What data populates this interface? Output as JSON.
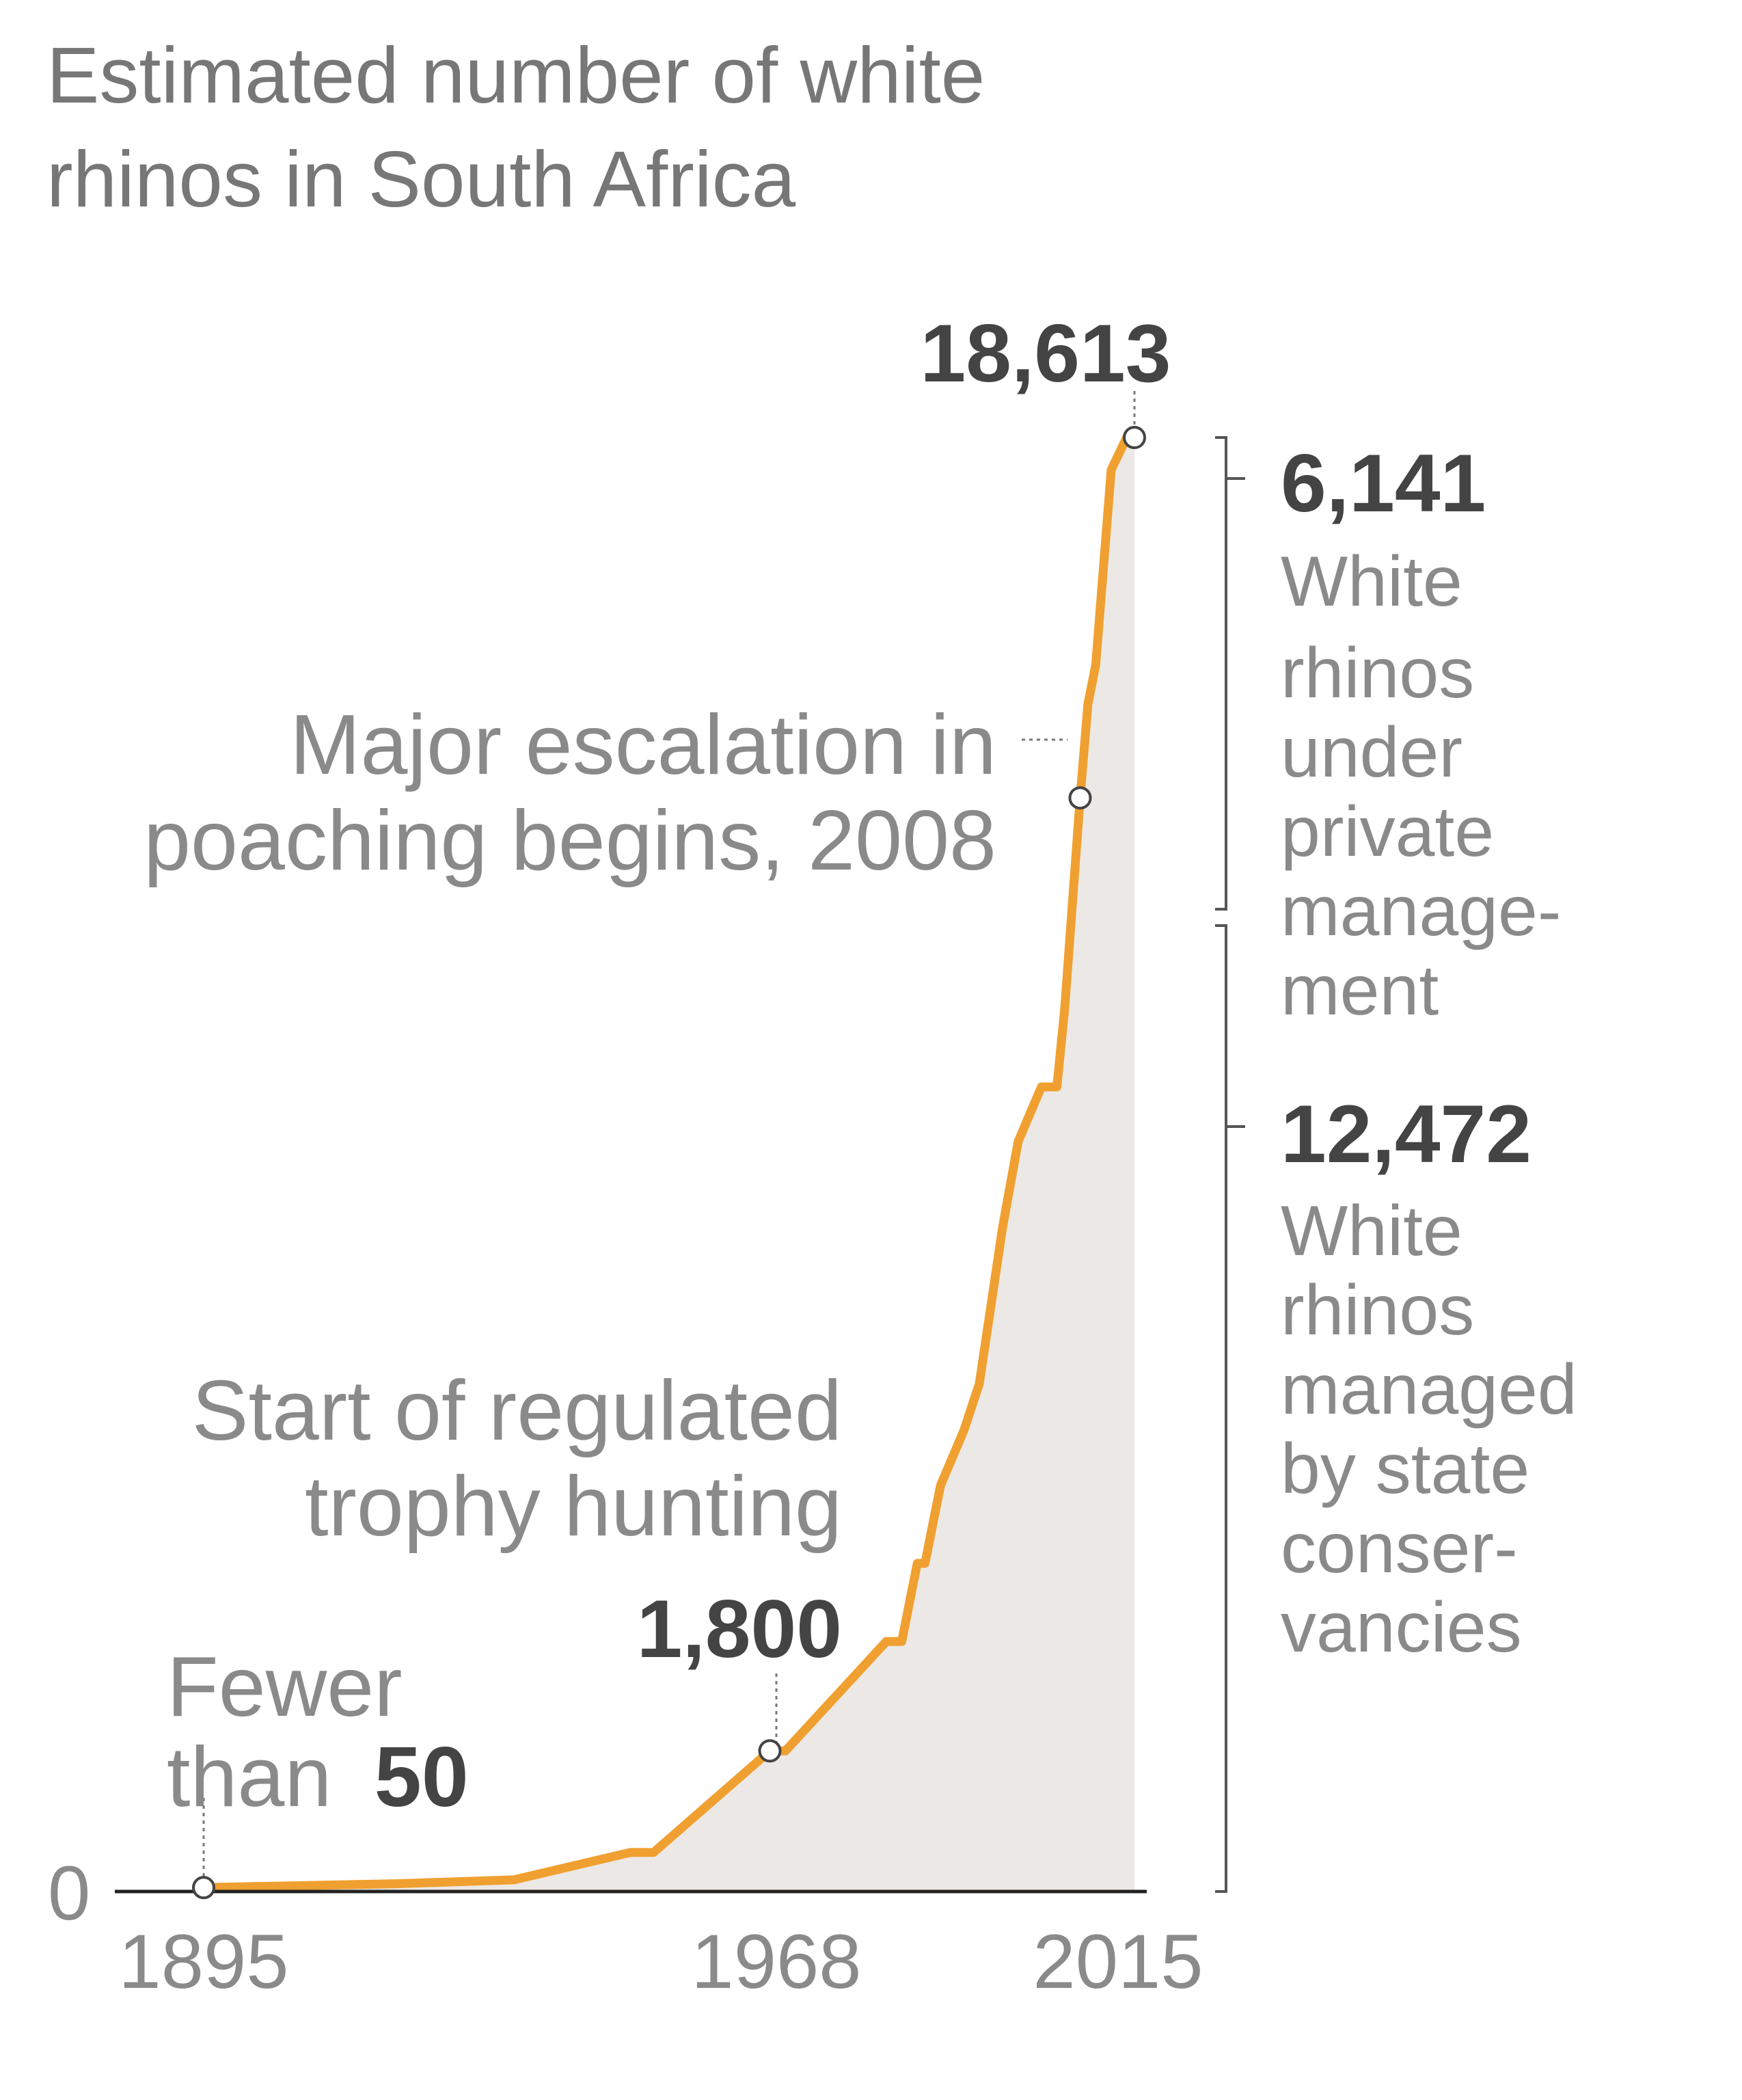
{
  "chart_data": {
    "type": "area",
    "title_lines": [
      "Estimated number of white",
      "rhinos in South Africa"
    ],
    "xlabel": "",
    "ylabel": "",
    "x_ticks": [
      "1895",
      "1968",
      "2015"
    ],
    "y_ticks": [
      "0"
    ],
    "xlim": [
      1895,
      2015
    ],
    "ylim": [
      0,
      18613
    ],
    "grid": false,
    "colors": {
      "line": "#f0a030",
      "fill": "#ece8e5",
      "axis": "#222222",
      "bracket": "#555555"
    },
    "series": [
      {
        "points": [
          [
            1895,
            50
          ],
          [
            1900,
            60
          ],
          [
            1920,
            100
          ],
          [
            1935,
            150
          ],
          [
            1950,
            500
          ],
          [
            1953,
            500
          ],
          [
            1968,
            1800
          ],
          [
            1970,
            1800
          ],
          [
            1983,
            3200
          ],
          [
            1985,
            3200
          ],
          [
            1987,
            4200
          ],
          [
            1988,
            4200
          ],
          [
            1990,
            5200
          ],
          [
            1993,
            5900
          ],
          [
            1995,
            6500
          ],
          [
            1998,
            8500
          ],
          [
            2000,
            9600
          ],
          [
            2003,
            10300
          ],
          [
            2005,
            10300
          ],
          [
            2006,
            11300
          ],
          [
            2008,
            14000
          ],
          [
            2009,
            15200
          ],
          [
            2010,
            15700
          ],
          [
            2012,
            18200
          ],
          [
            2014,
            18613
          ],
          [
            2015,
            18613
          ]
        ]
      }
    ],
    "annotations": {
      "start": {
        "line1": "Fewer",
        "line2_prefix": "than",
        "line2_value": "50"
      },
      "hunting": {
        "line1": "Start of regulated",
        "line2": "trophy hunting",
        "value": "1,800"
      },
      "poaching": {
        "line1": "Major escalation in",
        "line2": "poaching begins, 2008"
      },
      "peak": {
        "value": "18,613"
      }
    },
    "breakdown": [
      {
        "value": "6,141",
        "lines": [
          "White",
          "rhinos",
          "under",
          "private",
          "manage-",
          "ment"
        ]
      },
      {
        "value": "12,472",
        "lines": [
          "White",
          "rhinos",
          "managed",
          "by state",
          "conser-",
          "vancies"
        ]
      }
    ]
  }
}
